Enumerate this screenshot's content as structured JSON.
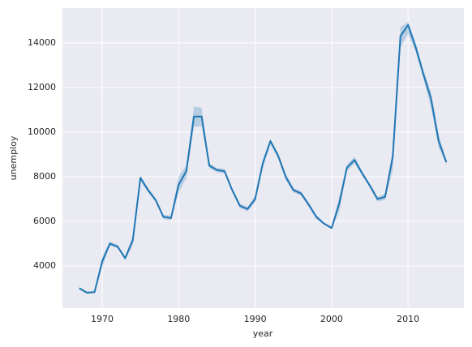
{
  "chart_data": {
    "type": "line",
    "x_label": "year",
    "y_label": "unemploy",
    "x": [
      1967,
      1968,
      1969,
      1970,
      1971,
      1972,
      1973,
      1974,
      1975,
      1976,
      1977,
      1978,
      1979,
      1980,
      1981,
      1982,
      1983,
      1984,
      1985,
      1986,
      1987,
      1988,
      1989,
      1990,
      1991,
      1992,
      1993,
      1994,
      1995,
      1996,
      1997,
      1998,
      1999,
      2000,
      2001,
      2002,
      2003,
      2004,
      2005,
      2006,
      2007,
      2008,
      2009,
      2010,
      2011,
      2012,
      2013,
      2014,
      2015
    ],
    "series": [
      {
        "name": "unemploy",
        "color": "#1f77b4",
        "values": [
          3000,
          2800,
          2830,
          4200,
          5000,
          4870,
          4350,
          5150,
          7950,
          7400,
          6950,
          6200,
          6150,
          7650,
          8250,
          10700,
          10700,
          8500,
          8300,
          8250,
          7400,
          6700,
          6550,
          7000,
          8600,
          9600,
          8950,
          8000,
          7400,
          7250,
          6750,
          6200,
          5900,
          5700,
          6800,
          8400,
          8750,
          8150,
          7600,
          7000,
          7100,
          8900,
          14300,
          14800,
          13800,
          12600,
          11500,
          9600,
          8650
        ],
        "lower": [
          2950,
          2750,
          2780,
          3950,
          4900,
          4800,
          4250,
          4950,
          7800,
          7300,
          6850,
          6100,
          6050,
          7300,
          7950,
          10250,
          10250,
          8400,
          8200,
          8150,
          7300,
          6600,
          6450,
          6850,
          8400,
          9450,
          8800,
          7850,
          7300,
          7150,
          6650,
          6100,
          5850,
          5650,
          6450,
          8250,
          8600,
          8050,
          7500,
          6900,
          6950,
          8300,
          13800,
          14400,
          13600,
          12400,
          11100,
          9300,
          8550
        ],
        "upper": [
          3050,
          2850,
          2880,
          4400,
          5100,
          4950,
          4450,
          5350,
          8050,
          7500,
          7050,
          6300,
          6250,
          8000,
          8500,
          11150,
          11100,
          8600,
          8400,
          8350,
          7500,
          6800,
          6650,
          7150,
          8750,
          9700,
          9050,
          8150,
          7500,
          7350,
          6850,
          6300,
          5950,
          5750,
          7100,
          8550,
          8900,
          8250,
          7700,
          7100,
          7250,
          9200,
          14700,
          14950,
          14000,
          12800,
          11800,
          9900,
          8750
        ]
      }
    ],
    "xlim": [
      1964.8,
      2017.3
    ],
    "xticks": [
      1970,
      1980,
      1990,
      2000,
      2010
    ],
    "ylim": [
      2110,
      15560
    ],
    "yticks": [
      4000,
      6000,
      8000,
      10000,
      12000,
      14000
    ],
    "grid": true,
    "background": "#eaeaf2"
  }
}
